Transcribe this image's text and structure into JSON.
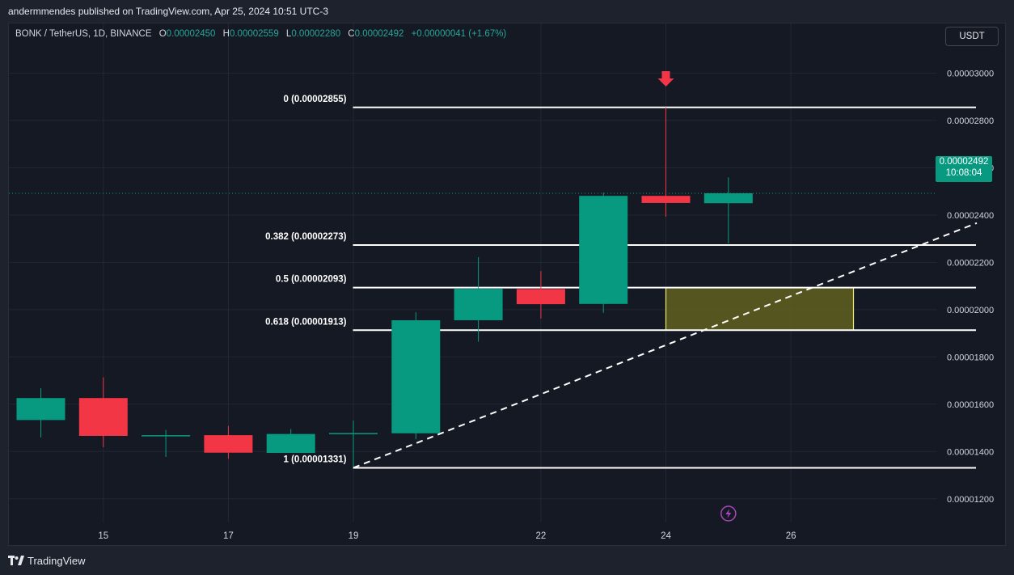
{
  "header": {
    "published_text": "andermmendes published on TradingView.com, Apr 25, 2024 10:51 UTC-3"
  },
  "legend": {
    "symbol": "BONK / TetherUS, 1D, BINANCE",
    "open_label": "O",
    "open": "0.00002450",
    "high_label": "H",
    "high": "0.00002559",
    "low_label": "L",
    "low": "0.00002280",
    "close_label": "C",
    "close": "0.00002492",
    "change": "+0.00000041 (+1.67%)"
  },
  "currency_button": "USDT",
  "price_tag": {
    "price": "0.00002492",
    "countdown": "10:08:04"
  },
  "footer": {
    "brand": "TradingView"
  },
  "colors": {
    "up": "#089981",
    "down": "#f23645",
    "background": "#151924",
    "grid": "#232734",
    "fib_line": "#ffffff",
    "zone_fill": "#6b6a1e",
    "zone_border": "#e8e86a",
    "arrow": "#f23645",
    "lightning": "#ab47bc"
  },
  "icons": {
    "signal_arrow": "down-arrow-icon",
    "event": "lightning-icon",
    "brand_logo": "tradingview-logo-icon"
  },
  "chart_data": {
    "type": "candlestick",
    "y_range": [
      1.1e-05,
      3.21e-05
    ],
    "y_ticks": [
      "0.00001200",
      "0.00001400",
      "0.00001600",
      "0.00001800",
      "0.00002000",
      "0.00002200",
      "0.00002400",
      "0.00002600",
      "0.00002800",
      "0.00003000"
    ],
    "x_ticks": [
      {
        "label": "15",
        "day": 15
      },
      {
        "label": "17",
        "day": 17
      },
      {
        "label": "19",
        "day": 19
      },
      {
        "label": "22",
        "day": 22
      },
      {
        "label": "24",
        "day": 24
      },
      {
        "label": "26",
        "day": 26
      }
    ],
    "candles": [
      {
        "date": "2024-04-14",
        "open": 1.533e-05,
        "high": 1.668e-05,
        "low": 1.46e-05,
        "close": 1.626e-05
      },
      {
        "date": "2024-04-15",
        "open": 1.626e-05,
        "high": 1.713e-05,
        "low": 1.418e-05,
        "close": 1.466e-05
      },
      {
        "date": "2024-04-16",
        "open": 1.466e-05,
        "high": 1.491e-05,
        "low": 1.377e-05,
        "close": 1.469e-05
      },
      {
        "date": "2024-04-17",
        "open": 1.469e-05,
        "high": 1.508e-05,
        "low": 1.369e-05,
        "close": 1.395e-05
      },
      {
        "date": "2024-04-18",
        "open": 1.394e-05,
        "high": 1.495e-05,
        "low": 1.394e-05,
        "close": 1.474e-05
      },
      {
        "date": "2024-04-19",
        "open": 1.474e-05,
        "high": 1.531e-05,
        "low": 1.331e-05,
        "close": 1.478e-05
      },
      {
        "date": "2024-04-20",
        "open": 1.477e-05,
        "high": 1.989e-05,
        "low": 1.452e-05,
        "close": 1.955e-05
      },
      {
        "date": "2024-04-21",
        "open": 1.955e-05,
        "high": 2.222e-05,
        "low": 1.864e-05,
        "close": 2.088e-05
      },
      {
        "date": "2024-04-22",
        "open": 2.087e-05,
        "high": 2.163e-05,
        "low": 1.962e-05,
        "close": 2.023e-05
      },
      {
        "date": "2024-04-23",
        "open": 2.024e-05,
        "high": 2.495e-05,
        "low": 1.986e-05,
        "close": 2.481e-05
      },
      {
        "date": "2024-04-24",
        "open": 2.481e-05,
        "high": 2.855e-05,
        "low": 2.393e-05,
        "close": 2.451e-05
      },
      {
        "date": "2024-04-25",
        "open": 2.45e-05,
        "high": 2.559e-05,
        "low": 2.28e-05,
        "close": 2.492e-05
      }
    ],
    "last_price": 2.492e-05,
    "fib_levels": [
      {
        "label": "0 (0.00002855)",
        "price": 2.855e-05
      },
      {
        "label": "0.382 (0.00002273)",
        "price": 2.273e-05
      },
      {
        "label": "0.5 (0.00002093)",
        "price": 2.093e-05
      },
      {
        "label": "0.618 (0.00001913)",
        "price": 1.913e-05
      },
      {
        "label": "1 (0.00001331)",
        "price": 1.331e-05
      }
    ],
    "fib_start_date": "2024-04-19",
    "fib_end_date": "2024-04-29",
    "zone": {
      "from_date": "2024-04-24",
      "to_date": "2024-04-27",
      "top": 2.093e-05,
      "bottom": 1.913e-05
    },
    "trendline": {
      "start": {
        "date": "2024-04-19",
        "price": 1.331e-05
      },
      "end": {
        "date": "2024-04-29",
        "price": 2.366e-05
      },
      "style": "dashed"
    },
    "signal_arrow": {
      "date": "2024-04-24",
      "price": 2.855e-05,
      "direction": "down"
    },
    "event_marker": {
      "date": "2024-04-25"
    }
  }
}
